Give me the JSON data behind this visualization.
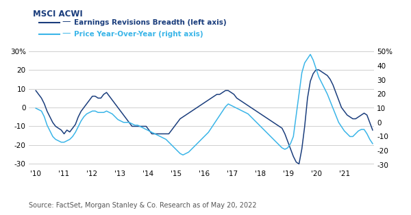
{
  "title": "MSCI ACWI",
  "legend_line1": "Earnings Revisions Breadth (left axis)",
  "legend_line2": "Price Year-Over-Year (right axis)",
  "source_text": "Source: FactSet, Morgan Stanley & Co. Research as of May 20, 2022",
  "left_ylim": [
    -32,
    32
  ],
  "right_ylim": [
    -32,
    53
  ],
  "left_yticks": [
    -30,
    -20,
    -10,
    0,
    10,
    20,
    30
  ],
  "right_yticks": [
    -30,
    -20,
    -10,
    0,
    10,
    20,
    30,
    40,
    50
  ],
  "color_erb": "#1a3d7c",
  "color_pyoy": "#3ab5e8",
  "background_color": "#ffffff",
  "grid_color": "#c8c8c8",
  "source_color": "#555555",
  "xtick_labels": [
    "'10",
    "'11",
    "'12",
    "'13",
    "'14",
    "'15",
    "'16",
    "'17",
    "'18",
    "'19",
    "'20",
    "'21"
  ],
  "erb_data": [
    9,
    7,
    5,
    2,
    -2,
    -5,
    -8,
    -10,
    -11,
    -12,
    -14,
    -12,
    -13,
    -11,
    -9,
    -5,
    -2,
    0,
    2,
    4,
    6,
    6,
    5,
    5,
    7,
    8,
    6,
    4,
    2,
    0,
    -2,
    -4,
    -6,
    -8,
    -10,
    -10,
    -10,
    -10,
    -10,
    -10,
    -12,
    -14,
    -14,
    -14,
    -14,
    -14,
    -14,
    -14,
    -12,
    -10,
    -8,
    -6,
    -5,
    -4,
    -3,
    -2,
    -1,
    0,
    1,
    2,
    3,
    4,
    5,
    6,
    7,
    7,
    8,
    9,
    9,
    8,
    7,
    5,
    4,
    3,
    2,
    1,
    0,
    -1,
    -2,
    -3,
    -4,
    -5,
    -6,
    -7,
    -8,
    -9,
    -10,
    -11,
    -14,
    -18,
    -22,
    -26,
    -29,
    -30,
    -22,
    -10,
    5,
    14,
    18,
    20,
    20,
    19,
    18,
    17,
    15,
    12,
    8,
    4,
    0,
    -2,
    -4,
    -5,
    -6,
    -6,
    -5,
    -4,
    -3,
    -4,
    -8,
    -12
  ],
  "pyoy_data": [
    10,
    9,
    8,
    4,
    -2,
    -6,
    -10,
    -12,
    -13,
    -14,
    -14,
    -13,
    -12,
    -10,
    -7,
    -3,
    1,
    4,
    6,
    7,
    8,
    8,
    7,
    7,
    7,
    8,
    7,
    6,
    4,
    2,
    1,
    0,
    0,
    0,
    -1,
    -2,
    -2,
    -3,
    -4,
    -5,
    -6,
    -7,
    -8,
    -9,
    -10,
    -11,
    -12,
    -14,
    -16,
    -18,
    -20,
    -22,
    -23,
    -22,
    -21,
    -19,
    -17,
    -15,
    -13,
    -11,
    -9,
    -7,
    -4,
    -1,
    2,
    5,
    8,
    11,
    13,
    12,
    11,
    10,
    9,
    8,
    7,
    6,
    4,
    2,
    0,
    -2,
    -4,
    -6,
    -8,
    -10,
    -12,
    -14,
    -16,
    -18,
    -19,
    -18,
    -15,
    -10,
    5,
    20,
    35,
    42,
    45,
    48,
    44,
    38,
    32,
    28,
    24,
    20,
    15,
    10,
    5,
    0,
    -3,
    -6,
    -8,
    -10,
    -10,
    -8,
    -6,
    -5,
    -5,
    -8,
    -12,
    -15
  ]
}
